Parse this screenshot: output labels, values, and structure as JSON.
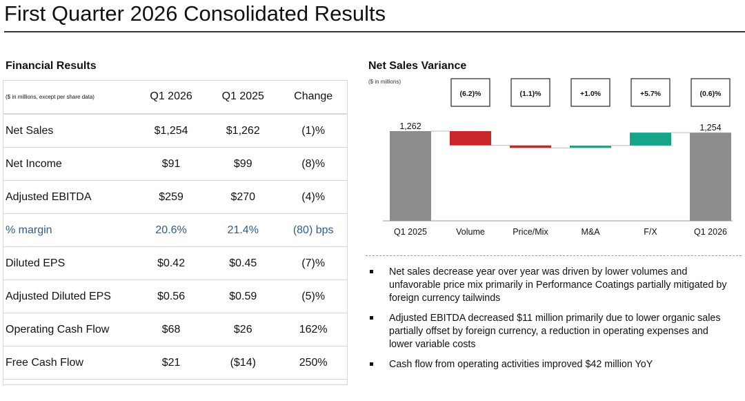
{
  "page": {
    "title": "First Quarter 2026 Consolidated Results"
  },
  "financial": {
    "heading": "Financial Results",
    "header": {
      "label": "($ in millions, except per share data)",
      "col1": "Q1 2026",
      "col2": "Q1 2025",
      "col3": "Change"
    },
    "rows": [
      {
        "label": "Net Sales",
        "q1_2026": "$1,254",
        "q1_2025": "$1,262",
        "change": "(1)%"
      },
      {
        "label": "Net Income",
        "q1_2026": "$91",
        "q1_2025": "$99",
        "change": "(8)%"
      },
      {
        "label": "Adjusted EBITDA",
        "q1_2026": "$259",
        "q1_2025": "$270",
        "change": "(4)%"
      },
      {
        "label": "% margin",
        "q1_2026": "20.6%",
        "q1_2025": "21.4%",
        "change": "(80) bps"
      },
      {
        "label": "Diluted EPS",
        "q1_2026": "$0.42",
        "q1_2025": "$0.45",
        "change": "(7)%"
      },
      {
        "label": "Adjusted Diluted EPS",
        "q1_2026": "$0.56",
        "q1_2025": "$0.59",
        "change": "(5)%"
      },
      {
        "label": "Operating Cash Flow",
        "q1_2026": "$68",
        "q1_2025": "$26",
        "change": "162%"
      },
      {
        "label": "Free Cash Flow",
        "q1_2026": "$21",
        "q1_2025": "($14)",
        "change": "250%"
      }
    ],
    "margin_color": "#2a5d92"
  },
  "variance": {
    "heading": "Net Sales Variance",
    "units": "($ in millions)"
  },
  "chart_data": {
    "type": "waterfall",
    "title": "Net Sales Variance",
    "ylabel": "($ in millions)",
    "categories": [
      "Q1 2025",
      "Volume",
      "Price/Mix",
      "M&A",
      "F/X",
      "Q1 2026"
    ],
    "values": [
      1262,
      -78,
      -14,
      13,
      71,
      1254
    ],
    "kinds": [
      "total",
      "delta",
      "delta",
      "delta",
      "delta",
      "total"
    ],
    "pct_labels": [
      "",
      "(6.2)%",
      "(1.1)%",
      "+1.0%",
      "+5.7%",
      "(0.6)%"
    ],
    "value_labels": [
      "1,262",
      "",
      "",
      "",
      "",
      "1,254"
    ],
    "colors": {
      "total": "#8c8c8c",
      "negative": "#c9262c",
      "positive": "#17a58a"
    },
    "grid": false,
    "legend": "none"
  },
  "bullets": [
    "Net sales decrease year over year was driven by lower volumes and unfavorable price mix primarily in Performance Coatings partially mitigated by foreign currency tailwinds",
    "Adjusted EBITDA decreased $11 million primarily due to lower organic sales partially offset by foreign currency, a reduction in operating expenses and lower variable costs",
    "Cash flow from operating activities improved $42 million YoY"
  ]
}
